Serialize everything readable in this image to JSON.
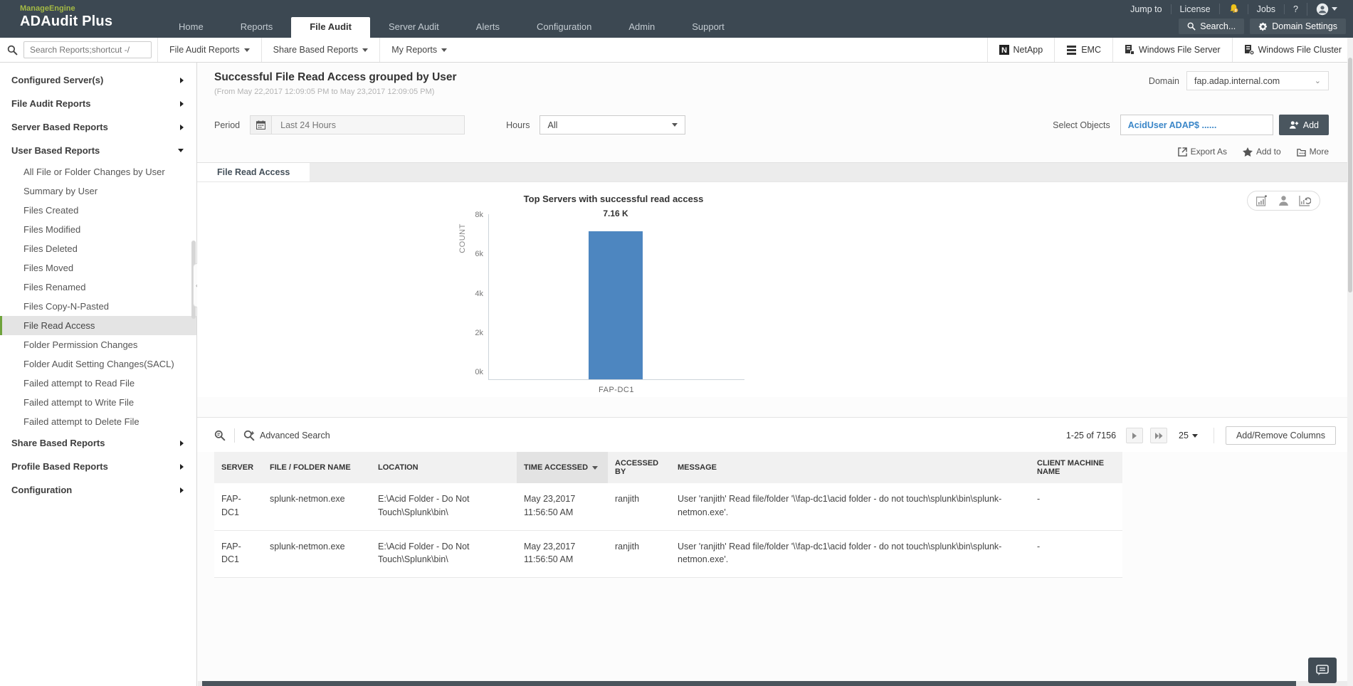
{
  "topbar": {
    "brand_small": "ManageEngine",
    "brand_product": "ADAudit Plus",
    "nav": [
      {
        "label": "Home"
      },
      {
        "label": "Reports"
      },
      {
        "label": "File Audit",
        "active": true
      },
      {
        "label": "Server Audit"
      },
      {
        "label": "Alerts"
      },
      {
        "label": "Configuration"
      },
      {
        "label": "Admin"
      },
      {
        "label": "Support"
      }
    ],
    "links": {
      "jump_to": "Jump to",
      "license": "License",
      "jobs": "Jobs",
      "help": "?"
    },
    "search_button": "Search...",
    "domain_settings_button": "Domain Settings"
  },
  "toolbar": {
    "search_placeholder": "Search Reports;shortcut -/",
    "menus": [
      "File Audit Reports",
      "Share Based Reports",
      "My Reports"
    ],
    "platforms": [
      "NetApp",
      "EMC",
      "Windows File Server",
      "Windows File Cluster"
    ]
  },
  "sidebar": {
    "groups": [
      {
        "label": "Configured Server(s)"
      },
      {
        "label": "File Audit Reports"
      },
      {
        "label": "Server Based Reports"
      },
      {
        "label": "User Based Reports",
        "expanded": true,
        "items": [
          "All File or Folder Changes by User",
          "Summary by User",
          "Files Created",
          "Files Modified",
          "Files Deleted",
          "Files Moved",
          "Files Renamed",
          "Files Copy-N-Pasted",
          "File Read Access",
          "Folder Permission Changes",
          "Folder Audit Setting Changes(SACL)",
          "Failed attempt to Read File",
          "Failed attempt to Write File",
          "Failed attempt to Delete File"
        ],
        "selected_item": "File Read Access"
      },
      {
        "label": "Share Based Reports"
      },
      {
        "label": "Profile Based Reports"
      },
      {
        "label": "Configuration"
      }
    ]
  },
  "page": {
    "title": "Successful File Read Access grouped by User",
    "subtitle": "(From May 22,2017 12:09:05 PM to May 23,2017 12:09:05 PM)",
    "domain_label": "Domain",
    "domain_value": "fap.adap.internal.com",
    "period_label": "Period",
    "period_value": "Last 24 Hours",
    "hours_label": "Hours",
    "hours_value": "All",
    "select_objects_label": "Select Objects",
    "select_objects_value": "AcidUser ADAP$ ......",
    "add_button": "Add",
    "export_as": "Export As",
    "add_to": "Add to",
    "more": "More",
    "tab": "File Read Access"
  },
  "chart_data": {
    "type": "bar",
    "title": "Top Servers with successful read access",
    "categories": [
      "FAP-DC1"
    ],
    "values": [
      7160
    ],
    "value_labels": [
      "7.16 K"
    ],
    "xlabel": "",
    "ylabel": "COUNT",
    "yticks": [
      "0k",
      "2k",
      "4k",
      "6k",
      "8k"
    ],
    "ylim": [
      0,
      8000
    ],
    "bar_color": "#4d86c0",
    "grid": false,
    "legend": false
  },
  "table": {
    "advanced_search": "Advanced Search",
    "pagination": "1-25 of 7156",
    "page_size": "25",
    "add_remove_columns": "Add/Remove Columns",
    "columns": [
      "SERVER",
      "FILE / FOLDER NAME",
      "LOCATION",
      "TIME ACCESSED",
      "ACCESSED BY",
      "MESSAGE",
      "CLIENT MACHINE NAME"
    ],
    "rows": [
      {
        "server": "FAP-DC1",
        "file": "splunk-netmon.exe",
        "location": "E:\\Acid Folder - Do Not Touch\\Splunk\\bin\\",
        "time": "May 23,2017 11:56:50 AM",
        "accessed_by": "ranjith",
        "message": "User 'ranjith' Read file/folder '\\\\fap-dc1\\acid folder - do not touch\\splunk\\bin\\splunk-netmon.exe'.",
        "client": "-"
      },
      {
        "server": "FAP-DC1",
        "file": "splunk-netmon.exe",
        "location": "E:\\Acid Folder - Do Not Touch\\Splunk\\bin\\",
        "time": "May 23,2017 11:56:50 AM",
        "accessed_by": "ranjith",
        "message": "User 'ranjith' Read file/folder '\\\\fap-dc1\\acid folder - do not touch\\splunk\\bin\\splunk-netmon.exe'.",
        "client": "-"
      }
    ]
  },
  "colors": {
    "topbar": "#3c4852",
    "accent_green": "#6fa33c",
    "bar_blue": "#4d86c0",
    "link_blue": "#4a8fc8"
  }
}
